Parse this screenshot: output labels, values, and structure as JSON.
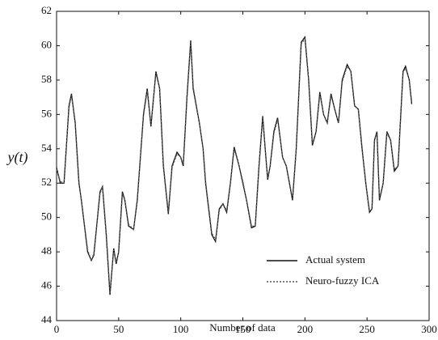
{
  "chart_data": {
    "type": "line",
    "xlabel": "Number of data",
    "ylabel": "y(t)",
    "x": [
      0,
      3,
      6,
      10,
      12,
      15,
      18,
      20,
      25,
      28,
      30,
      35,
      37,
      40,
      43,
      46,
      48,
      50,
      53,
      55,
      58,
      62,
      65,
      70,
      73,
      76,
      80,
      83,
      86,
      90,
      93,
      97,
      100,
      102,
      105,
      108,
      110,
      115,
      118,
      120,
      125,
      128,
      131,
      134,
      137,
      140,
      143,
      147,
      150,
      153,
      157,
      160,
      163,
      166,
      168,
      170,
      172,
      175,
      178,
      182,
      185,
      190,
      193,
      197,
      200,
      203,
      206,
      209,
      212,
      215,
      218,
      221,
      224,
      227,
      230,
      234,
      237,
      240,
      243,
      246,
      249,
      252,
      254,
      256,
      258,
      260,
      263,
      266,
      269,
      272,
      275,
      279,
      281,
      284,
      286
    ],
    "series": [
      {
        "name": "Actual system",
        "color": "#111111",
        "dash": "none",
        "values": [
          52.9,
          52.0,
          52.0,
          56.5,
          57.2,
          55.5,
          52.0,
          51.0,
          48.0,
          47.5,
          47.8,
          51.5,
          51.8,
          49.0,
          45.5,
          48.2,
          47.3,
          48.0,
          51.5,
          51.0,
          49.5,
          49.3,
          51.0,
          56.0,
          57.5,
          55.3,
          58.5,
          57.5,
          53.0,
          50.2,
          53.0,
          53.8,
          53.5,
          53.0,
          57.0,
          60.3,
          57.5,
          55.5,
          54.0,
          52.0,
          49.0,
          48.6,
          50.5,
          50.8,
          50.3,
          52.0,
          54.1,
          53.0,
          52.0,
          51.0,
          49.4,
          49.5,
          53.0,
          55.9,
          54.0,
          52.2,
          53.0,
          55.0,
          55.8,
          53.5,
          53.0,
          51.0,
          54.0,
          60.2,
          60.5,
          58.0,
          54.2,
          55.0,
          57.3,
          56.0,
          55.5,
          57.2,
          56.3,
          55.5,
          58.0,
          58.9,
          58.5,
          56.5,
          56.3,
          54.0,
          52.0,
          50.3,
          50.5,
          54.5,
          55.0,
          51.0,
          52.0,
          55.0,
          54.5,
          52.7,
          53.0,
          58.5,
          58.8,
          58.0,
          56.6
        ]
      },
      {
        "name": "Neuro-fuzzy ICA",
        "color": "#555555",
        "dash": "2,2",
        "values": [
          52.8,
          52.1,
          52.0,
          56.4,
          57.1,
          55.6,
          52.1,
          51.0,
          48.1,
          47.5,
          47.9,
          51.4,
          51.8,
          49.1,
          45.6,
          48.1,
          47.4,
          48.0,
          51.4,
          51.0,
          49.6,
          49.3,
          51.1,
          55.9,
          57.4,
          55.4,
          58.4,
          57.5,
          53.1,
          50.3,
          52.9,
          53.7,
          53.5,
          53.1,
          56.9,
          60.2,
          57.6,
          55.5,
          54.0,
          52.1,
          49.1,
          48.7,
          50.4,
          50.8,
          50.4,
          52.0,
          54.0,
          53.0,
          52.1,
          51.0,
          49.5,
          49.5,
          52.9,
          55.8,
          54.0,
          52.3,
          53.0,
          54.9,
          55.7,
          53.5,
          53.0,
          51.1,
          54.0,
          60.1,
          60.4,
          58.0,
          54.3,
          55.0,
          57.2,
          56.0,
          55.5,
          57.1,
          56.3,
          55.5,
          57.9,
          58.8,
          58.5,
          56.5,
          56.3,
          54.1,
          52.0,
          50.4,
          50.5,
          54.4,
          55.0,
          51.1,
          52.0,
          54.9,
          54.5,
          52.8,
          53.0,
          58.4,
          58.7,
          58.0,
          56.7
        ]
      }
    ],
    "xlim": [
      0,
      300
    ],
    "xticks": [
      0,
      50,
      100,
      150,
      200,
      250,
      300
    ],
    "ylim": [
      44,
      62
    ],
    "yticks": [
      44,
      46,
      48,
      50,
      52,
      54,
      56,
      58,
      60,
      62
    ],
    "legend": "lower right"
  }
}
